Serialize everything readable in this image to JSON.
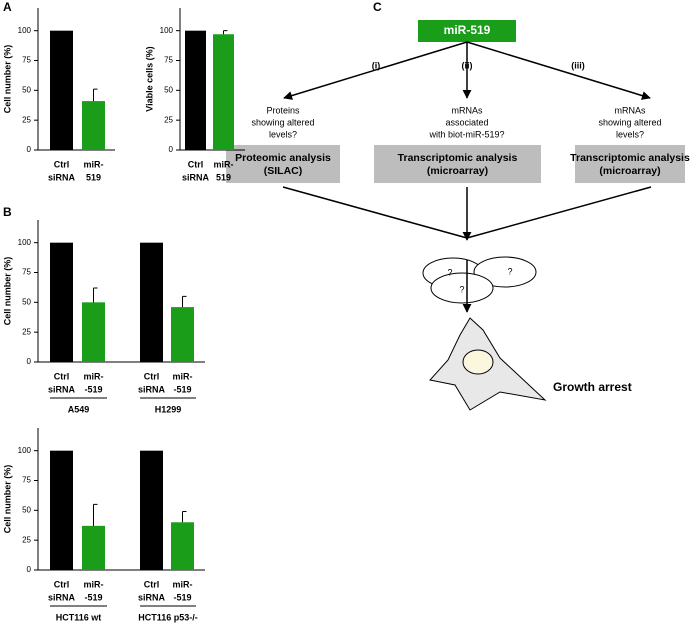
{
  "panels": [
    "A",
    "B",
    "C"
  ],
  "chart_data": [
    {
      "type": "bar",
      "ylabel": "Cell number (%)",
      "categories": [
        [
          "Ctrl",
          "siRNA"
        ],
        [
          "miR-",
          "519"
        ]
      ],
      "values": [
        100,
        41
      ],
      "errors": [
        null,
        10
      ],
      "colors": [
        "#000000",
        "#1a9e1a"
      ],
      "ylim": [
        0,
        119
      ],
      "yticks": [
        0,
        25,
        50,
        75,
        100
      ]
    },
    {
      "type": "bar",
      "ylabel": "Viable cells (%)",
      "categories": [
        [
          "Ctrl",
          "siRNA"
        ],
        [
          "miR-",
          "519"
        ]
      ],
      "values": [
        100,
        97
      ],
      "errors": [
        null,
        3
      ],
      "colors": [
        "#000000",
        "#1a9e1a"
      ],
      "ylim": [
        0,
        119
      ],
      "yticks": [
        0,
        25,
        50,
        75,
        100
      ]
    },
    {
      "type": "bar",
      "ylabel": "Cell number (%)",
      "categories": [
        [
          "Ctrl",
          "siRNA"
        ],
        [
          "miR-",
          "-519"
        ],
        [
          "Ctrl",
          "siRNA"
        ],
        [
          "miR-",
          "-519"
        ]
      ],
      "groups": [
        "A549",
        "H1299"
      ],
      "values": [
        100,
        50,
        100,
        46
      ],
      "errors": [
        null,
        12,
        null,
        9
      ],
      "colors": [
        "#000000",
        "#1a9e1a",
        "#000000",
        "#1a9e1a"
      ],
      "ylim": [
        0,
        119
      ],
      "yticks": [
        0,
        25,
        50,
        75,
        100
      ]
    },
    {
      "type": "bar",
      "ylabel": "Cell number (%)",
      "categories": [
        [
          "Ctrl",
          "siRNA"
        ],
        [
          "miR-",
          "-519"
        ],
        [
          "Ctrl",
          "siRNA"
        ],
        [
          "miR-",
          "-519"
        ]
      ],
      "groups": [
        "HCT116 wt",
        "HCT116 p53-/-"
      ],
      "values": [
        100,
        37,
        100,
        40
      ],
      "errors": [
        null,
        18,
        null,
        9
      ],
      "colors": [
        "#000000",
        "#1a9e1a",
        "#000000",
        "#1a9e1a"
      ],
      "ylim": [
        0,
        119
      ],
      "yticks": [
        0,
        25,
        50,
        75,
        100
      ]
    }
  ],
  "diagram": {
    "source": "miR-519",
    "branches": [
      {
        "label": "(i)",
        "question": [
          "Proteins",
          "showing altered",
          "levels?"
        ],
        "box": [
          "Proteomic analysis",
          "(SILAC)"
        ]
      },
      {
        "label": "(ii)",
        "question": [
          "mRNAs",
          "associated",
          "with biot-miR-519?"
        ],
        "box": [
          "Transcriptomic analysis",
          "(microarray)"
        ]
      },
      {
        "label": "(iii)",
        "question": [
          "mRNAs",
          "showing altered",
          "levels?"
        ],
        "box": [
          "Transcriptomic analysis",
          "(microarray)"
        ]
      }
    ],
    "unknowns": [
      "?",
      "?",
      "?"
    ],
    "outcome": "Growth arrest"
  }
}
